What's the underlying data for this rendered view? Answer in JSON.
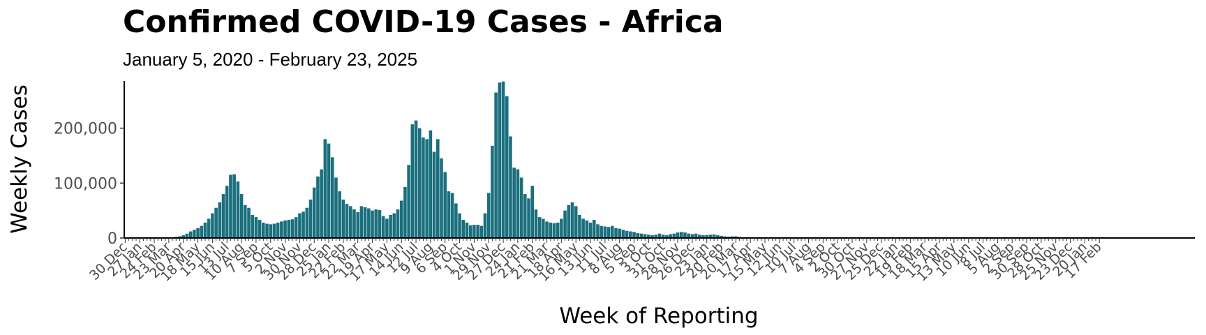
{
  "chart_data": {
    "type": "bar",
    "title": "Confirmed COVID-19 Cases - Africa",
    "subtitle": "January 5, 2020 - February 23, 2025",
    "xlabel": "Week of Reporting",
    "ylabel": "Weekly Cases",
    "ylim": [
      0,
      286000
    ],
    "yticks": [
      0,
      100000,
      200000
    ],
    "ytick_labels": [
      "0",
      "100,000",
      "200,000"
    ],
    "bar_color": "#1b6f7e",
    "axis_color": "#000000",
    "grid": false,
    "legend": "none",
    "x_start": "2020-01-05",
    "x_end": "2025-02-23",
    "xtick_labels": [
      "30 Dec",
      "27 Jan",
      "24 Feb",
      "23 Mar",
      "20 Apr",
      "18 May",
      "15 Jun",
      "13 Jul",
      "10 Aug",
      "7 Sep",
      "5 Oct",
      "2 Nov",
      "30 Nov",
      "28 Dec",
      "25 Jan",
      "22 Feb",
      "22 Mar",
      "19 Apr",
      "17 May",
      "14 Jun",
      "12 Jul",
      "9 Aug",
      "6 Sep",
      "4 Oct",
      "1 Nov",
      "29 Nov",
      "27 Dec",
      "24 Jan",
      "21 Feb",
      "21 Mar",
      "18 Apr",
      "16 May",
      "13 Jun",
      "11 Jul",
      "8 Aug",
      "5 Sep",
      "3 Oct",
      "31 Oct",
      "28 Nov",
      "26 Dec",
      "23 Jan",
      "20 Feb",
      "20 Mar",
      "17 Apr",
      "15 May",
      "12 Jun",
      "10 Jul",
      "7 Aug",
      "4 Sep",
      "2 Oct",
      "30 Oct",
      "27 Nov",
      "25 Dec",
      "22 Jan",
      "19 Feb",
      "18 Mar",
      "15 Apr",
      "13 May",
      "10 Jun",
      "8 Jul",
      "5 Aug",
      "2 Sep",
      "30 Sep",
      "28 Oct",
      "25 Nov",
      "23 Dec",
      "20 Jan",
      "17 Feb"
    ],
    "values": [
      0,
      0,
      0,
      0,
      0,
      0,
      0,
      0,
      0,
      0,
      200,
      500,
      1000,
      2000,
      3000,
      5000,
      8000,
      12000,
      15000,
      18000,
      22000,
      28000,
      35000,
      45000,
      55000,
      65000,
      80000,
      95000,
      115000,
      116000,
      103000,
      80000,
      60000,
      55000,
      42000,
      38000,
      33000,
      28000,
      26000,
      25000,
      26000,
      28000,
      30000,
      32000,
      33000,
      34000,
      38000,
      45000,
      48000,
      55000,
      70000,
      92000,
      112000,
      125000,
      180000,
      172000,
      147000,
      110000,
      85000,
      70000,
      62000,
      58000,
      52000,
      47000,
      58000,
      56000,
      54000,
      50000,
      52000,
      51000,
      40000,
      35000,
      42000,
      45000,
      52000,
      68000,
      93000,
      133000,
      207000,
      214000,
      200000,
      183000,
      180000,
      196000,
      157000,
      180000,
      145000,
      120000,
      85000,
      82000,
      63000,
      45000,
      33000,
      28000,
      23000,
      24000,
      24000,
      22000,
      45000,
      82000,
      168000,
      265000,
      283000,
      285000,
      258000,
      185000,
      128000,
      125000,
      110000,
      80000,
      72000,
      95000,
      52000,
      38000,
      35000,
      30000,
      28000,
      27000,
      28000,
      35000,
      50000,
      60000,
      65000,
      58000,
      42000,
      35000,
      32000,
      28000,
      33000,
      25000,
      22000,
      21000,
      20000,
      22000,
      18000,
      17000,
      15000,
      13000,
      12000,
      11000,
      9000,
      8000,
      7000,
      6000,
      5000,
      6000,
      8000,
      6000,
      5000,
      7000,
      8000,
      10000,
      11000,
      10000,
      8000,
      7000,
      8000,
      6000,
      5000,
      5500,
      6000,
      6500,
      5000,
      4000,
      3000,
      2500,
      3000,
      3000,
      2000,
      1500,
      1000,
      1000,
      800,
      600,
      500,
      400,
      400,
      300,
      400,
      500,
      700,
      500,
      300,
      300,
      200,
      200,
      200,
      200,
      150,
      150,
      150,
      150,
      100,
      100,
      100,
      100,
      100,
      100,
      100,
      100,
      100,
      100,
      150,
      200,
      300,
      500,
      1200,
      1500,
      1000,
      800,
      500,
      300,
      200,
      150,
      100,
      100,
      100,
      100,
      100,
      100,
      100,
      100,
      100,
      100,
      100,
      100,
      100,
      100,
      100,
      100,
      100,
      100,
      100,
      100,
      100,
      100,
      100,
      100,
      100,
      100,
      100,
      100,
      100,
      100,
      100,
      100,
      100,
      100,
      100,
      100,
      100,
      100,
      100,
      100,
      100,
      100,
      100,
      100,
      100,
      100,
      100,
      100,
      100,
      100,
      100,
      100,
      100,
      100,
      100,
      100,
      100,
      100,
      100,
      100,
      100,
      100,
      100,
      100,
      100,
      100,
      100,
      100,
      100,
      100,
      100,
      100,
      100,
      100,
      100,
      100,
      100,
      100,
      100
    ]
  }
}
